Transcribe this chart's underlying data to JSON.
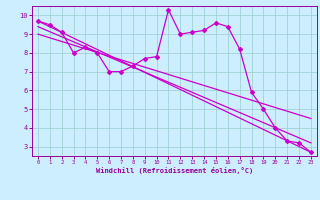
{
  "xlabel": "Windchill (Refroidissement éolien,°C)",
  "bg_color": "#cceeff",
  "grid_color": "#99cccc",
  "line_color": "#cc00cc",
  "xlim": [
    -0.5,
    23.5
  ],
  "ylim": [
    2.5,
    10.5
  ],
  "xticks": [
    0,
    1,
    2,
    3,
    4,
    5,
    6,
    7,
    8,
    9,
    10,
    11,
    12,
    13,
    14,
    15,
    16,
    17,
    18,
    19,
    20,
    21,
    22,
    23
  ],
  "yticks": [
    3,
    4,
    5,
    6,
    7,
    8,
    9,
    10
  ],
  "zigzag_x": [
    0,
    1,
    2,
    3,
    4,
    5,
    6,
    7,
    8,
    9,
    10,
    11,
    12,
    13,
    14,
    15,
    16,
    17,
    18,
    19,
    20,
    21,
    22,
    23
  ],
  "zigzag_y": [
    9.7,
    9.5,
    9.1,
    8.0,
    8.3,
    8.0,
    7.0,
    7.0,
    7.3,
    7.7,
    7.8,
    10.3,
    9.0,
    9.1,
    9.2,
    9.6,
    9.4,
    8.2,
    5.9,
    5.0,
    4.0,
    3.3,
    3.2,
    2.7
  ],
  "line1_x": [
    0,
    23
  ],
  "line1_y": [
    9.7,
    2.7
  ],
  "line2_x": [
    0,
    23
  ],
  "line2_y": [
    9.4,
    3.2
  ],
  "line3_x": [
    0,
    23
  ],
  "line3_y": [
    9.0,
    4.5
  ]
}
